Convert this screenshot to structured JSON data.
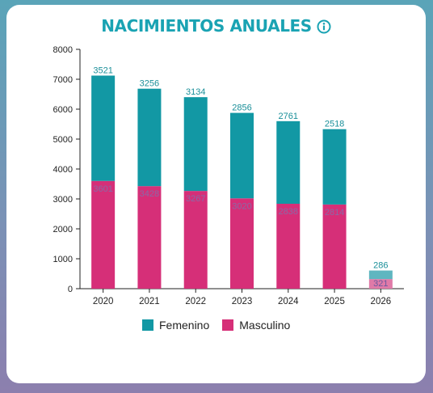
{
  "header": {
    "title": "NACIMIENTOS ANUALES",
    "info_icon": "info-circle-icon"
  },
  "colors": {
    "femenino": "#1298a4",
    "masculino": "#d62f78",
    "masculino_partial": "#e07aa8",
    "femenino_partial": "#5fb6c0",
    "title": "#1aa3b3"
  },
  "chart_data": {
    "type": "bar",
    "stacked": true,
    "categories": [
      "2020",
      "2021",
      "2022",
      "2023",
      "2024",
      "2025",
      "2026"
    ],
    "series": [
      {
        "name": "Masculino",
        "values": [
          3601,
          3428,
          3267,
          3020,
          2838,
          2814,
          321
        ]
      },
      {
        "name": "Femenino",
        "values": [
          3521,
          3256,
          3134,
          2856,
          2761,
          2518,
          286
        ]
      }
    ],
    "ylim": [
      0,
      8000
    ],
    "yticks": [
      "0",
      "1000",
      "2000",
      "3000",
      "4000",
      "5000",
      "6000",
      "7000",
      "8000"
    ],
    "legend_position": "bottom",
    "grid": false
  },
  "legend": {
    "femenino_label": "Femenino",
    "masculino_label": "Masculino"
  }
}
